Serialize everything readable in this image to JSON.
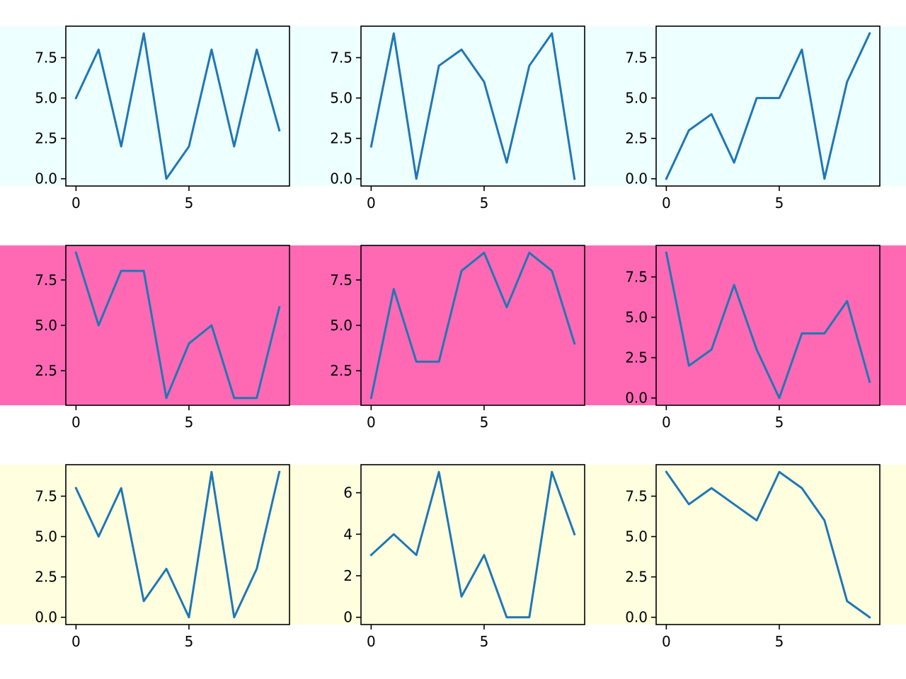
{
  "colors": {
    "line": "#1f77b4",
    "axes_edge": "#000000",
    "row_backgrounds": [
      "#eeffff",
      "#ff69b4",
      "#ffffe0"
    ]
  },
  "chart_data": [
    {
      "type": "line",
      "row": 0,
      "col": 0,
      "x": [
        0,
        1,
        2,
        3,
        4,
        5,
        6,
        7,
        8,
        9
      ],
      "y": [
        5,
        8,
        2,
        9,
        0,
        2,
        8,
        2,
        8,
        3
      ],
      "xticks": [
        "0",
        "5"
      ],
      "yticks": [
        "0.0",
        "2.5",
        "5.0",
        "7.5"
      ],
      "xlim": [
        -0.45,
        9.45
      ],
      "ylim": [
        -0.45,
        9.45
      ]
    },
    {
      "type": "line",
      "row": 0,
      "col": 1,
      "x": [
        0,
        1,
        2,
        3,
        4,
        5,
        6,
        7,
        8,
        9
      ],
      "y": [
        2,
        9,
        0,
        7,
        8,
        6,
        1,
        7,
        9,
        0
      ],
      "xticks": [
        "0",
        "5"
      ],
      "yticks": [
        "0.0",
        "2.5",
        "5.0",
        "7.5"
      ],
      "xlim": [
        -0.45,
        9.45
      ],
      "ylim": [
        -0.45,
        9.45
      ]
    },
    {
      "type": "line",
      "row": 0,
      "col": 2,
      "x": [
        0,
        1,
        2,
        3,
        4,
        5,
        6,
        7,
        8,
        9
      ],
      "y": [
        0,
        3,
        4,
        1,
        5,
        5,
        8,
        0,
        6,
        9
      ],
      "xticks": [
        "0",
        "5"
      ],
      "yticks": [
        "0.0",
        "2.5",
        "5.0",
        "7.5"
      ],
      "xlim": [
        -0.45,
        9.45
      ],
      "ylim": [
        -0.45,
        9.45
      ]
    },
    {
      "type": "line",
      "row": 1,
      "col": 0,
      "x": [
        0,
        1,
        2,
        3,
        4,
        5,
        6,
        7,
        8,
        9
      ],
      "y": [
        9,
        5,
        8,
        8,
        1,
        4,
        5,
        1,
        1,
        6
      ],
      "xticks": [
        "0",
        "5"
      ],
      "yticks": [
        "2.5",
        "5.0",
        "7.5"
      ],
      "xlim": [
        -0.45,
        9.45
      ],
      "ylim": [
        0.6,
        9.4
      ]
    },
    {
      "type": "line",
      "row": 1,
      "col": 1,
      "x": [
        0,
        1,
        2,
        3,
        4,
        5,
        6,
        7,
        8,
        9
      ],
      "y": [
        1,
        7,
        3,
        3,
        8,
        9,
        6,
        9,
        8,
        4
      ],
      "xticks": [
        "0",
        "5"
      ],
      "yticks": [
        "2.5",
        "5.0",
        "7.5"
      ],
      "xlim": [
        -0.45,
        9.45
      ],
      "ylim": [
        0.6,
        9.4
      ]
    },
    {
      "type": "line",
      "row": 1,
      "col": 2,
      "x": [
        0,
        1,
        2,
        3,
        4,
        5,
        6,
        7,
        8,
        9
      ],
      "y": [
        9,
        2,
        3,
        7,
        3,
        0,
        4,
        4,
        6,
        1
      ],
      "xticks": [
        "0",
        "5"
      ],
      "yticks": [
        "0.0",
        "2.5",
        "5.0",
        "7.5"
      ],
      "xlim": [
        -0.45,
        9.45
      ],
      "ylim": [
        -0.45,
        9.45
      ]
    },
    {
      "type": "line",
      "row": 2,
      "col": 0,
      "x": [
        0,
        1,
        2,
        3,
        4,
        5,
        6,
        7,
        8,
        9
      ],
      "y": [
        8,
        5,
        8,
        1,
        3,
        0,
        9,
        0,
        3,
        9
      ],
      "xticks": [
        "0",
        "5"
      ],
      "yticks": [
        "0.0",
        "2.5",
        "5.0",
        "7.5"
      ],
      "xlim": [
        -0.45,
        9.45
      ],
      "ylim": [
        -0.45,
        9.45
      ]
    },
    {
      "type": "line",
      "row": 2,
      "col": 1,
      "x": [
        0,
        1,
        2,
        3,
        4,
        5,
        6,
        7,
        8,
        9
      ],
      "y": [
        3,
        4,
        3,
        7,
        1,
        3,
        0,
        0,
        7,
        4
      ],
      "xticks": [
        "0",
        "5"
      ],
      "yticks": [
        "0",
        "2",
        "4",
        "6"
      ],
      "xlim": [
        -0.45,
        9.45
      ],
      "ylim": [
        -0.35,
        7.35
      ]
    },
    {
      "type": "line",
      "row": 2,
      "col": 2,
      "x": [
        0,
        1,
        2,
        3,
        4,
        5,
        6,
        7,
        8,
        9
      ],
      "y": [
        9,
        7,
        8,
        7,
        6,
        9,
        8,
        6,
        1,
        0
      ],
      "xticks": [
        "0",
        "5"
      ],
      "yticks": [
        "0.0",
        "2.5",
        "5.0",
        "7.5"
      ],
      "xlim": [
        -0.45,
        9.45
      ],
      "ylim": [
        -0.45,
        9.45
      ]
    }
  ]
}
